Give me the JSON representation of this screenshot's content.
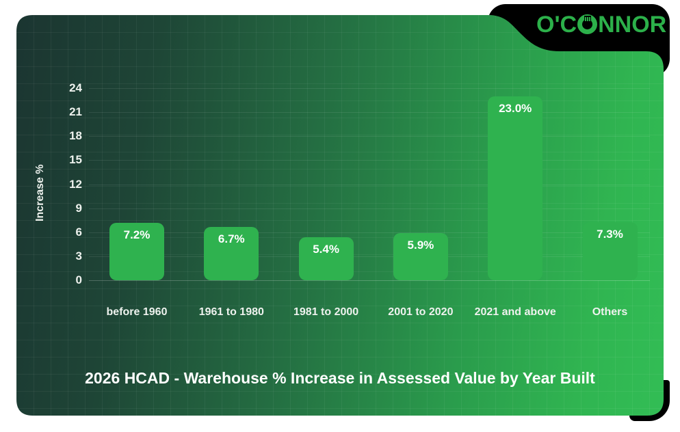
{
  "logo": {
    "name": "O'CONNOR",
    "part_before_icon": "O'C",
    "part_after_icon": "NNOR",
    "color": "#2cb04a"
  },
  "chart_data": {
    "type": "bar",
    "title": "2026 HCAD - Warehouse % Increase in Assessed Value by Year Built",
    "ylabel": "Increase %",
    "xlabel": "",
    "categories": [
      "before 1960",
      "1961 to 1980",
      "1981 to 2000",
      "2001 to 2020",
      "2021 and above",
      "Others"
    ],
    "values": [
      7.2,
      6.7,
      5.4,
      5.9,
      23.0,
      7.3
    ],
    "value_labels": [
      "7.2%",
      "6.7%",
      "5.4%",
      "5.9%",
      "23.0%",
      "7.3%"
    ],
    "yticks": [
      0,
      3,
      6,
      9,
      12,
      15,
      18,
      21,
      24
    ],
    "ylim": [
      0,
      24
    ],
    "grid": true,
    "legend": false,
    "colors": {
      "bar": "#2fb24f",
      "background_dark": "#1b3531",
      "background_bright": "#32bd55",
      "text": "#eef2ee",
      "notch_black": "#000000"
    }
  }
}
